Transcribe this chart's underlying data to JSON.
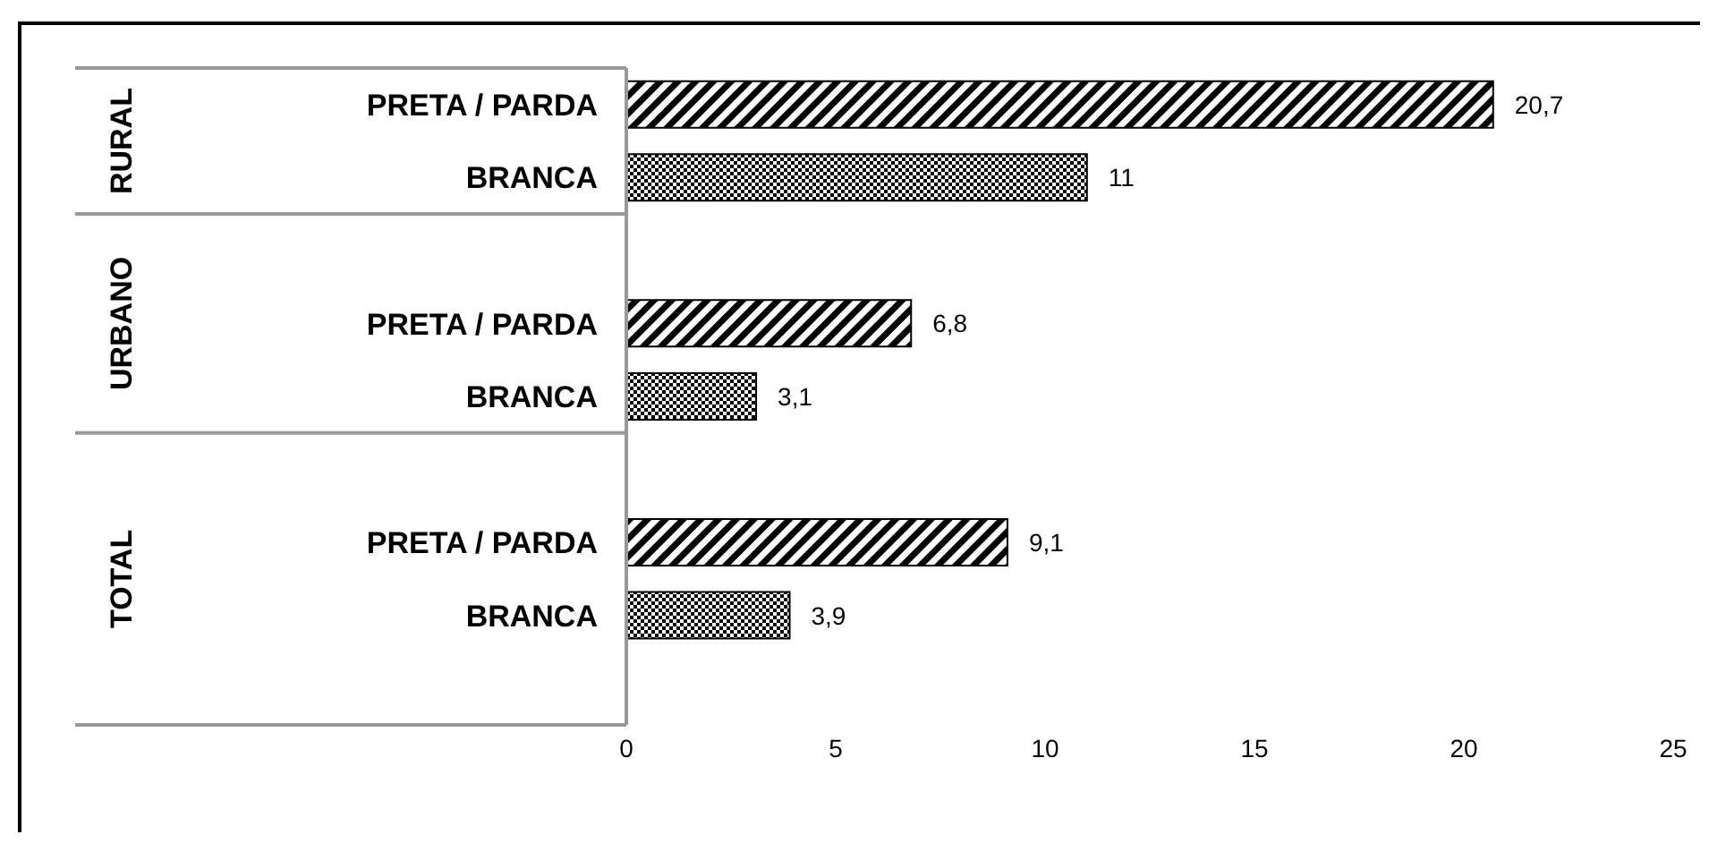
{
  "chart_data": {
    "type": "bar",
    "orientation": "horizontal",
    "categories": [
      "PRETA / PARDA",
      "BRANCA",
      null,
      "PRETA / PARDA",
      "BRANCA",
      null,
      "PRETA / PARDA",
      "BRANCA",
      null
    ],
    "series": [
      {
        "color": "#000000",
        "values": [
          20.7,
          null,
          null,
          6.8,
          null,
          null,
          9.1,
          null,
          null
        ],
        "value_labels": [
          "20,7",
          null,
          null,
          "6,8",
          null,
          null,
          "9,1",
          null,
          null
        ]
      },
      {
        "color": "#000000",
        "values": [
          null,
          11,
          null,
          null,
          3.1,
          null,
          null,
          3.9,
          null
        ],
        "value_labels": [
          null,
          "11",
          null,
          null,
          "3,1",
          null,
          null,
          "3,9",
          null
        ]
      }
    ],
    "annotations": [
      "RURAL",
      "URBANO",
      "TOTAL"
    ],
    "xlim": [
      0,
      25
    ],
    "xticks": [
      0,
      5,
      10,
      15,
      20,
      25
    ]
  }
}
